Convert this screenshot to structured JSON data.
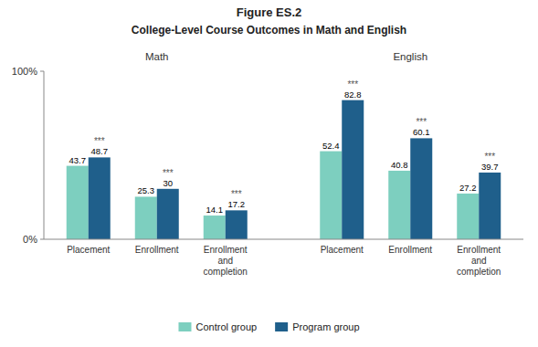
{
  "chart_data": {
    "type": "bar",
    "title": "Figure ES.2",
    "subtitle": "College-Level Course Outcomes in Math and English",
    "groups": [
      "Math",
      "English"
    ],
    "categories": [
      "Placement",
      "Enrollment",
      "Enrollment\nand\ncompletion",
      "Placement",
      "Enrollment",
      "Enrollment\nand\ncompletion"
    ],
    "series": [
      {
        "name": "Control group",
        "color": "#7dcfbf",
        "values": [
          43.7,
          25.3,
          14.1,
          52.4,
          40.8,
          27.2
        ]
      },
      {
        "name": "Program group",
        "color": "#1f5f8b",
        "values": [
          48.7,
          30.0,
          17.2,
          82.8,
          60.1,
          39.7
        ],
        "annotations": [
          "***",
          "***",
          "***",
          "***",
          "***",
          "***"
        ]
      }
    ],
    "ylim": [
      0,
      100
    ],
    "yticks": [
      {
        "value": 0,
        "label": "0%"
      },
      {
        "value": 100,
        "label": "100%"
      }
    ],
    "data_labels": true,
    "legend": "bottom",
    "grid": false
  }
}
